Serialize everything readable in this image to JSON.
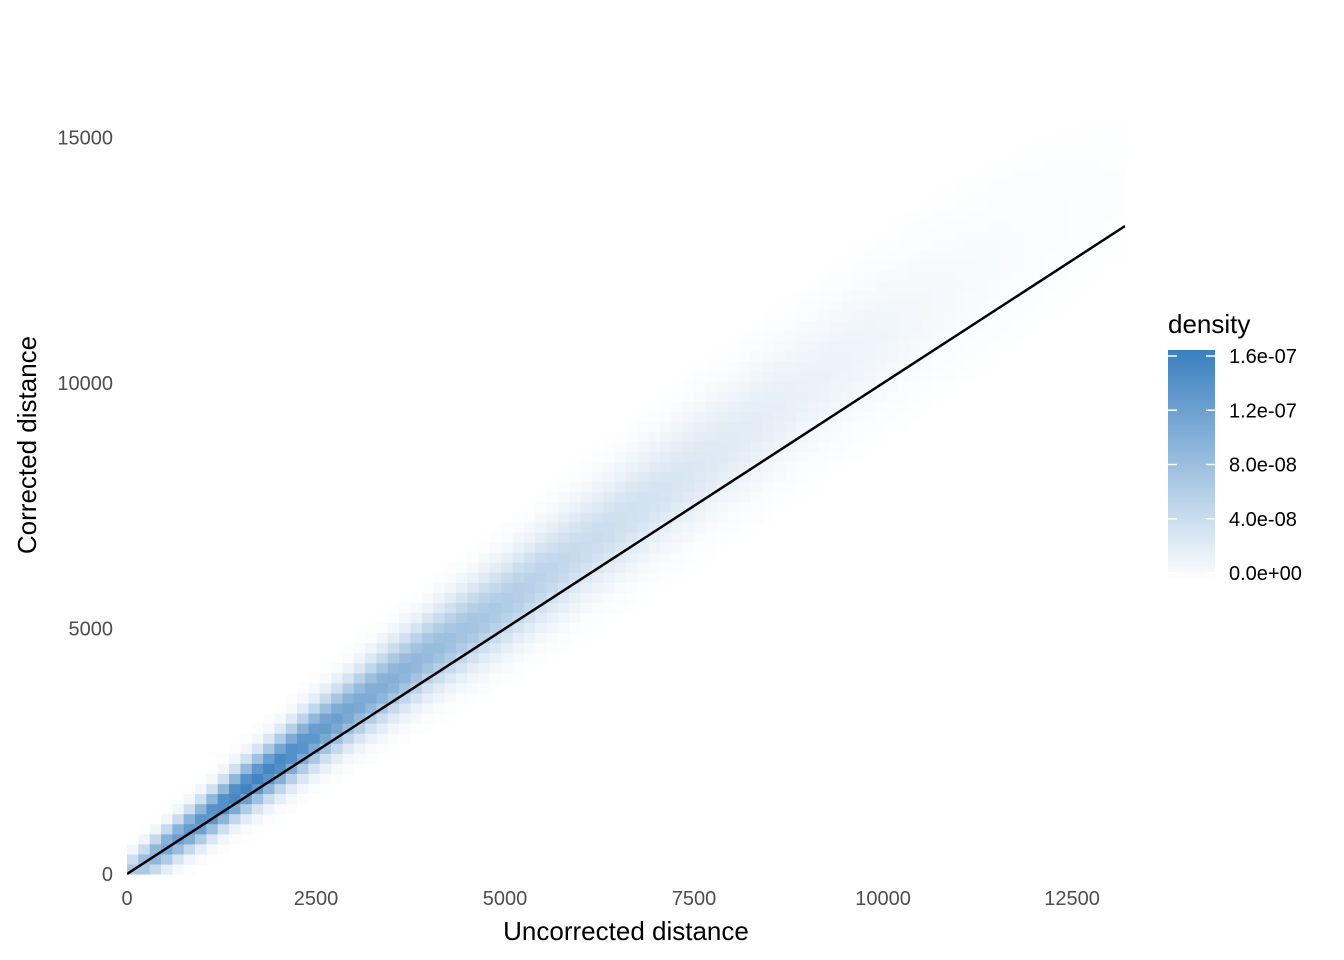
{
  "chart_data": {
    "type": "heatmap",
    "subtype": "2d-density",
    "title": "",
    "xlabel": "Uncorrected distance",
    "ylabel": "Corrected distance",
    "xlim": [
      0,
      13200
    ],
    "ylim": [
      0,
      17500
    ],
    "x_ticks": [
      "0",
      "2500",
      "5000",
      "7500",
      "10000",
      "12500"
    ],
    "x_tick_values": [
      0,
      2500,
      5000,
      7500,
      10000,
      12500
    ],
    "y_ticks": [
      "0",
      "5000",
      "10000",
      "15000"
    ],
    "y_tick_values": [
      0,
      5000,
      10000,
      15000
    ],
    "grid": false,
    "reference_line": {
      "type": "identity",
      "slope": 1,
      "intercept": 0,
      "color": "#000000"
    },
    "fill_scale": {
      "name": "density",
      "low_color": "#ffffff",
      "high_color": "#3a7fbf",
      "range": [
        0,
        1.6e-07
      ],
      "breaks": [
        0,
        4e-08,
        8e-08,
        1.2e-07,
        1.6e-07
      ],
      "labels": [
        "0.0e+00",
        "4.0e-08",
        "8.0e-08",
        "1.2e-07",
        "1.6e-07"
      ]
    },
    "legend_position": "right",
    "density_ridge": {
      "x": [
        0,
        500,
        1000,
        1500,
        2000,
        2500,
        3000,
        3500,
        4000,
        5000,
        6000,
        7000,
        8000,
        9000,
        10000,
        11000,
        12000,
        13000
      ],
      "y": [
        0,
        550,
        1100,
        1700,
        2250,
        2850,
        3400,
        3950,
        4500,
        5500,
        6600,
        7700,
        8800,
        9900,
        11000,
        12000,
        13000,
        13900
      ],
      "peak_density": [
        6e-08,
        1.1e-07,
        1.35e-07,
        1.55e-07,
        1.5e-07,
        1.3e-07,
        1.1e-07,
        1e-07,
        8.5e-08,
        6.5e-08,
        4.5e-08,
        3.5e-08,
        2.5e-08,
        1.7e-08,
        1.2e-08,
        7e-09,
        4e-09,
        2e-09
      ]
    }
  }
}
